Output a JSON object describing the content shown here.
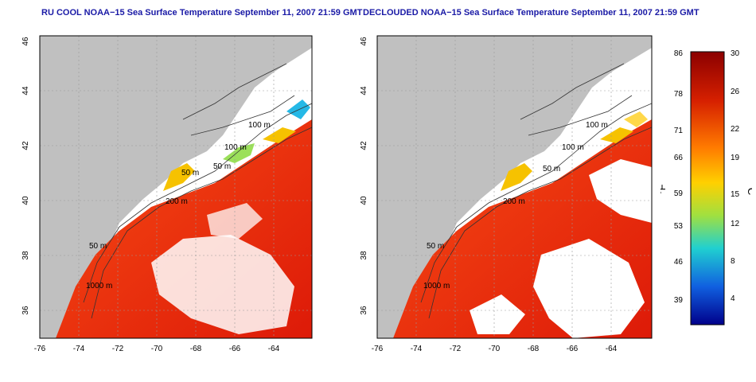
{
  "left_map": {
    "title": "RU COOL NOAA−15 Sea Surface Temperature September 11, 2007 21:59 GMT",
    "x_ticks": [
      "-76",
      "-74",
      "-72",
      "-70",
      "-68",
      "-66",
      "-64"
    ],
    "y_ticks": [
      "36",
      "38",
      "40",
      "42",
      "44",
      "46"
    ],
    "contour_labels": [
      "100 m",
      "100 m",
      "50 m",
      "50 m",
      "200 m",
      "50 m",
      "1000 m"
    ]
  },
  "right_map": {
    "title": "DECLOUDED NOAA−15 Sea Surface Temperature September 11, 2007 21:59 GMT",
    "x_ticks": [
      "-76",
      "-74",
      "-72",
      "-70",
      "-68",
      "-66",
      "-64"
    ],
    "y_ticks": [
      "36",
      "38",
      "40",
      "42",
      "44",
      "46"
    ],
    "contour_labels": [
      "100 m",
      "100 m",
      "50 m",
      "200 m",
      "50 m",
      "1000 m"
    ]
  },
  "colorbar": {
    "f_label": "°F",
    "c_label": "°C",
    "f_ticks": [
      "86",
      "78",
      "71",
      "66",
      "59",
      "53",
      "46",
      "39"
    ],
    "c_ticks": [
      "30",
      "26",
      "22",
      "19",
      "15",
      "12",
      "8",
      "4"
    ],
    "colors": [
      "#8b0000",
      "#d62000",
      "#ff7a00",
      "#ffd000",
      "#a0e040",
      "#20d0d0",
      "#1060e0",
      "#00008b"
    ]
  },
  "colors": {
    "land": "#c0c0c0",
    "cloud": "#ffffff",
    "warm_sea": "#e8200a",
    "title": "#1a1aa6"
  }
}
